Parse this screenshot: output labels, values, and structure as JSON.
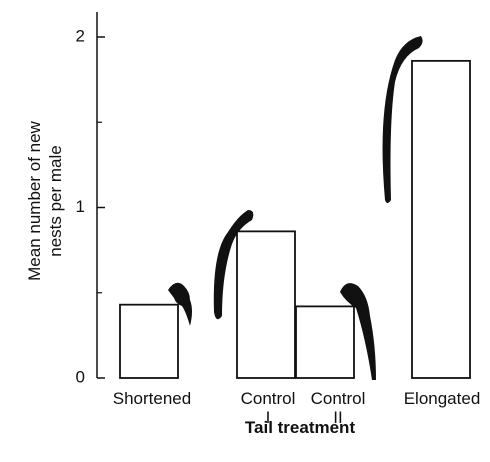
{
  "chart_data": {
    "type": "bar",
    "y_label": "Mean number of new nests per male",
    "x_label": "Tail treatment",
    "categories": [
      "Shortened",
      "Control I",
      "Control II",
      "Elongated"
    ],
    "values": [
      0.43,
      0.86,
      0.42,
      1.86
    ],
    "color": "#ffffff",
    "ylim": [
      0,
      2
    ],
    "yticks": [
      0,
      1,
      2
    ],
    "yminor": [
      0.5,
      1.5
    ],
    "grid": false
  }
}
